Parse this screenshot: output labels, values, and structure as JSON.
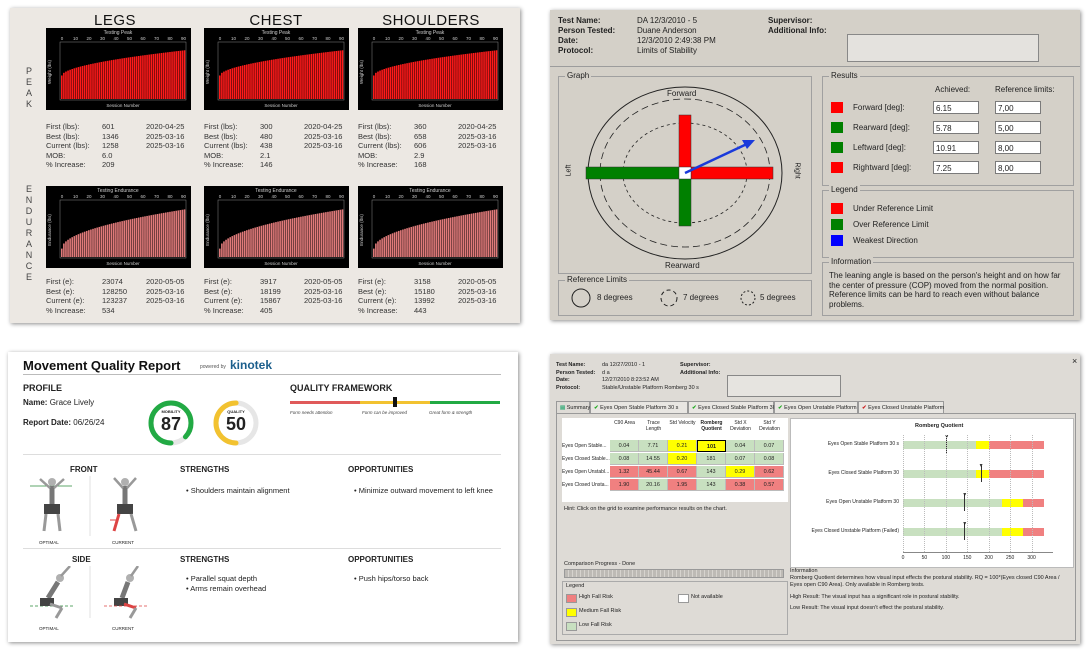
{
  "legs_panel": {
    "columns": [
      {
        "title": "LEGS",
        "peak": {
          "stats": [
            [
              "First (lbs):",
              "601",
              "2020-04-25"
            ],
            [
              "Best (lbs):",
              "1346",
              "2025-03-16"
            ],
            [
              "Current (lbs):",
              "1258",
              "2025-03-16"
            ],
            [
              "MOB:",
              "6.0",
              ""
            ],
            [
              "% Increase:",
              "209",
              ""
            ]
          ]
        },
        "endurance": {
          "stats": [
            [
              "First (e):",
              "23074",
              "2020-05-05"
            ],
            [
              "Best (e):",
              "128250",
              "2025-03-16"
            ],
            [
              "Current (e):",
              "123237",
              "2025-03-16"
            ],
            [
              "% Increase:",
              "534",
              ""
            ]
          ]
        }
      },
      {
        "title": "CHEST",
        "peak": {
          "stats": [
            [
              "First (lbs):",
              "300",
              "2020-04-25"
            ],
            [
              "Best (lbs):",
              "480",
              "2025-03-16"
            ],
            [
              "Current (lbs):",
              "438",
              "2025-03-16"
            ],
            [
              "MOB:",
              "2.1",
              ""
            ],
            [
              "% Increase:",
              "146",
              ""
            ]
          ]
        },
        "endurance": {
          "stats": [
            [
              "First (e):",
              "3917",
              "2020-05-05"
            ],
            [
              "Best (e):",
              "18199",
              "2025-03-16"
            ],
            [
              "Current (e):",
              "15867",
              "2025-03-16"
            ],
            [
              "% Increase:",
              "405",
              ""
            ]
          ]
        }
      },
      {
        "title": "SHOULDERS",
        "peak": {
          "stats": [
            [
              "First (lbs):",
              "360",
              "2020-04-25"
            ],
            [
              "Best (lbs):",
              "658",
              "2025-03-16"
            ],
            [
              "Current (lbs):",
              "606",
              "2025-03-16"
            ],
            [
              "MOB:",
              "2.9",
              ""
            ],
            [
              "% Increase:",
              "168",
              ""
            ]
          ]
        },
        "endurance": {
          "stats": [
            [
              "First (e):",
              "3158",
              "2020-05-05"
            ],
            [
              "Best (e):",
              "15180",
              "2025-03-16"
            ],
            [
              "Current (e):",
              "13992",
              "2025-03-16"
            ],
            [
              "% Increase:",
              "443",
              ""
            ]
          ]
        }
      }
    ],
    "row_labels": {
      "peak": "PEAK",
      "endurance": "ENDURANCE"
    },
    "chart_text": {
      "peak_title": "Testing Peak",
      "endurance_title": "Testing Endurance",
      "xlabel": "Session Number",
      "peak_ylabel": "Weight (lbs)",
      "endurance_ylabel": "Endurance (lbs)",
      "xticks": [
        "0",
        "10",
        "20",
        "30",
        "40",
        "50",
        "60",
        "70",
        "80",
        "90"
      ],
      "bar_colors": {
        "peak": "#ff1a1a",
        "endurance": "#e07a7a"
      }
    }
  },
  "stability_panel": {
    "header": {
      "test_name_label": "Test Name:",
      "test_name": "DA 12/3/2010 - 5",
      "person_label": "Person Tested:",
      "person": "Duane Anderson",
      "date_label": "Date:",
      "date": "12/3/2010 2:49:38 PM",
      "protocol_label": "Protocol:",
      "protocol": "Limits of Stability",
      "supervisor_label": "Supervisor:",
      "additional_label": "Additional Info:"
    },
    "graph": {
      "title": "Graph",
      "forward": "Forward",
      "rearward": "Rearward",
      "left": "Left",
      "right": "Right"
    },
    "results": {
      "title": "Results",
      "achieved_label": "Achieved:",
      "reference_label": "Reference limits:",
      "rows": [
        {
          "label": "Forward [deg]:",
          "achieved": "6.15",
          "reference": "7,00",
          "color": "#ff0000"
        },
        {
          "label": "Rearward [deg]:",
          "achieved": "5.78",
          "reference": "5,00",
          "color": "#008000"
        },
        {
          "label": "Leftward [deg]:",
          "achieved": "10.91",
          "reference": "8,00",
          "color": "#008000"
        },
        {
          "label": "Rightward [deg]:",
          "achieved": "7.25",
          "reference": "8,00",
          "color": "#ff0000"
        }
      ]
    },
    "legend": {
      "title": "Legend",
      "items": [
        {
          "label": "Under Reference Limit",
          "color": "#ff0000"
        },
        {
          "label": "Over Reference Limit",
          "color": "#008000"
        },
        {
          "label": "Weakest Direction",
          "color": "#0000ff"
        }
      ]
    },
    "information": {
      "title": "Information",
      "text": "The leaning angle is based on the person's height and on how far the center of pressure (COP) moved from the normal position. Reference limits can be hard to reach even without balance problems."
    },
    "reference_limits": {
      "title": "Reference Limits",
      "items": [
        "8 degrees",
        "7 degrees",
        "5 degrees"
      ]
    }
  },
  "movement_panel": {
    "title": "Movement Quality Report",
    "powered_by": "powered by",
    "brand": "kinotek",
    "profile": {
      "heading": "PROFILE",
      "name_label": "Name:",
      "name": "Grace Lively",
      "date_label": "Report Date:",
      "date": "06/26/24"
    },
    "mobility": {
      "label": "MOBILITY",
      "value": "87",
      "fraction": 0.87,
      "color": "#22aa44"
    },
    "quality": {
      "label": "QUALITY",
      "value": "50",
      "fraction": 0.5,
      "color": "#f2c230"
    },
    "framework": {
      "heading": "QUALITY FRAMEWORK",
      "labels": [
        "Form needs attention",
        "Form can be improved",
        "Great form & strength"
      ],
      "colors": [
        "#e05a5a",
        "#f2c230",
        "#22aa44"
      ]
    },
    "front": {
      "heading": "FRONT",
      "strengths_heading": "STRENGTHS",
      "strengths": [
        "Shoulders maintain alignment"
      ],
      "opportunities_heading": "OPPORTUNITIES",
      "opportunities": [
        "Minimize outward movement to left knee"
      ],
      "optimal": "OPTIMAL",
      "current": "CURRENT"
    },
    "side": {
      "heading": "SIDE",
      "strengths_heading": "STRENGTHS",
      "strengths": [
        "Parallel squat depth",
        "Arms remain overhead"
      ],
      "opportunities_heading": "OPPORTUNITIES",
      "opportunities": [
        "Push hips/torso back"
      ],
      "optimal": "OPTIMAL",
      "current": "CURRENT"
    }
  },
  "romberg_panel": {
    "header": {
      "test_name_label": "Test Name:",
      "test_name": "da 12/27/2010 - 1",
      "person_label": "Person Tested:",
      "person": "d a",
      "date_label": "Date:",
      "date": "12/27/2010 8:23:52 AM",
      "protocol_label": "Protocol:",
      "protocol": "Stable/Unstable Platform Romberg 30 s",
      "supervisor_label": "Supervisor:",
      "additional_label": "Additional Info:",
      "close": "×"
    },
    "tabs": [
      "Summary",
      "Eyes Open Stable Platform 30 s",
      "Eyes Closed Stable Platform 30",
      "Eyes Open Unstable Platform 30",
      "Eyes Closed Unstable Platform"
    ],
    "table": {
      "headers": [
        "C90 Area",
        "Trace Length",
        "Std Velocity",
        "Romberg Quotient",
        "Std X Deviation",
        "Std Y Deviation"
      ],
      "rows": [
        {
          "label": "Eyes Open Stable...",
          "values": [
            "0.04",
            "7.71",
            "0.21",
            "101",
            "0.04",
            "0.07"
          ],
          "colors": [
            "#c8e0c0",
            "#c8e0c0",
            "#ffff00",
            "#ffff00",
            "#c8e0c0",
            "#c8e0c0"
          ]
        },
        {
          "label": "Eyes Closed Stable...",
          "values": [
            "0.08",
            "14.55",
            "0.20",
            "181",
            "0.07",
            "0.08"
          ],
          "colors": [
            "#c8e0c0",
            "#c8e0c0",
            "#ffff00",
            "#c8e0c0",
            "#c8e0c0",
            "#c8e0c0"
          ]
        },
        {
          "label": "Eyes Open Unstabl...",
          "values": [
            "1.32",
            "45.44",
            "0.67",
            "143",
            "0.29",
            "0.62"
          ],
          "colors": [
            "#f08080",
            "#f08080",
            "#f08080",
            "#c8e0c0",
            "#ffff00",
            "#f08080"
          ]
        },
        {
          "label": "Eyes Closed Unsta...",
          "values": [
            "1.90",
            "20.16",
            "1.95",
            "143",
            "0.38",
            "0.57"
          ],
          "colors": [
            "#f08080",
            "#c8e0c0",
            "#f08080",
            "#c8e0c0",
            "#f08080",
            "#f08080"
          ]
        }
      ]
    },
    "hint": "Hint: Click on the grid to examine performance results on the chart.",
    "progress_label": "Comparison Progress - Done",
    "legend": {
      "title": "Legend",
      "items": [
        {
          "label": "High Fall Risk",
          "color": "#f08080"
        },
        {
          "label": "Not available",
          "color": "#ffffff"
        },
        {
          "label": "Medium Fall Risk",
          "color": "#ffff00"
        },
        {
          "label": "Low Fall Risk",
          "color": "#c8e0c0"
        }
      ]
    },
    "chart_title": "Romberg Quotient",
    "chart_rows": [
      "Eyes Open Stable Platform 30 s",
      "Eyes Closed Stable Platform 30",
      "Eyes Open Unstable Platform 30",
      "Eyes Closed Unstable Platform  (Failed)"
    ],
    "chart_xticks": [
      "0",
      "50",
      "100",
      "150",
      "200",
      "250",
      "300"
    ],
    "information": {
      "title": "Information",
      "text": "Romberg Quotient determines how visual input effects the postural stability. RQ = 100*(Eyes closed C90 Area / Eyes open C90 Area). Only available in Romberg tests.",
      "high_label": "High Result:",
      "high": "The visual input has a significant role in postural stability.",
      "low_label": "Low Result:",
      "low": "The visual input doesn't effect the postural stability."
    }
  }
}
